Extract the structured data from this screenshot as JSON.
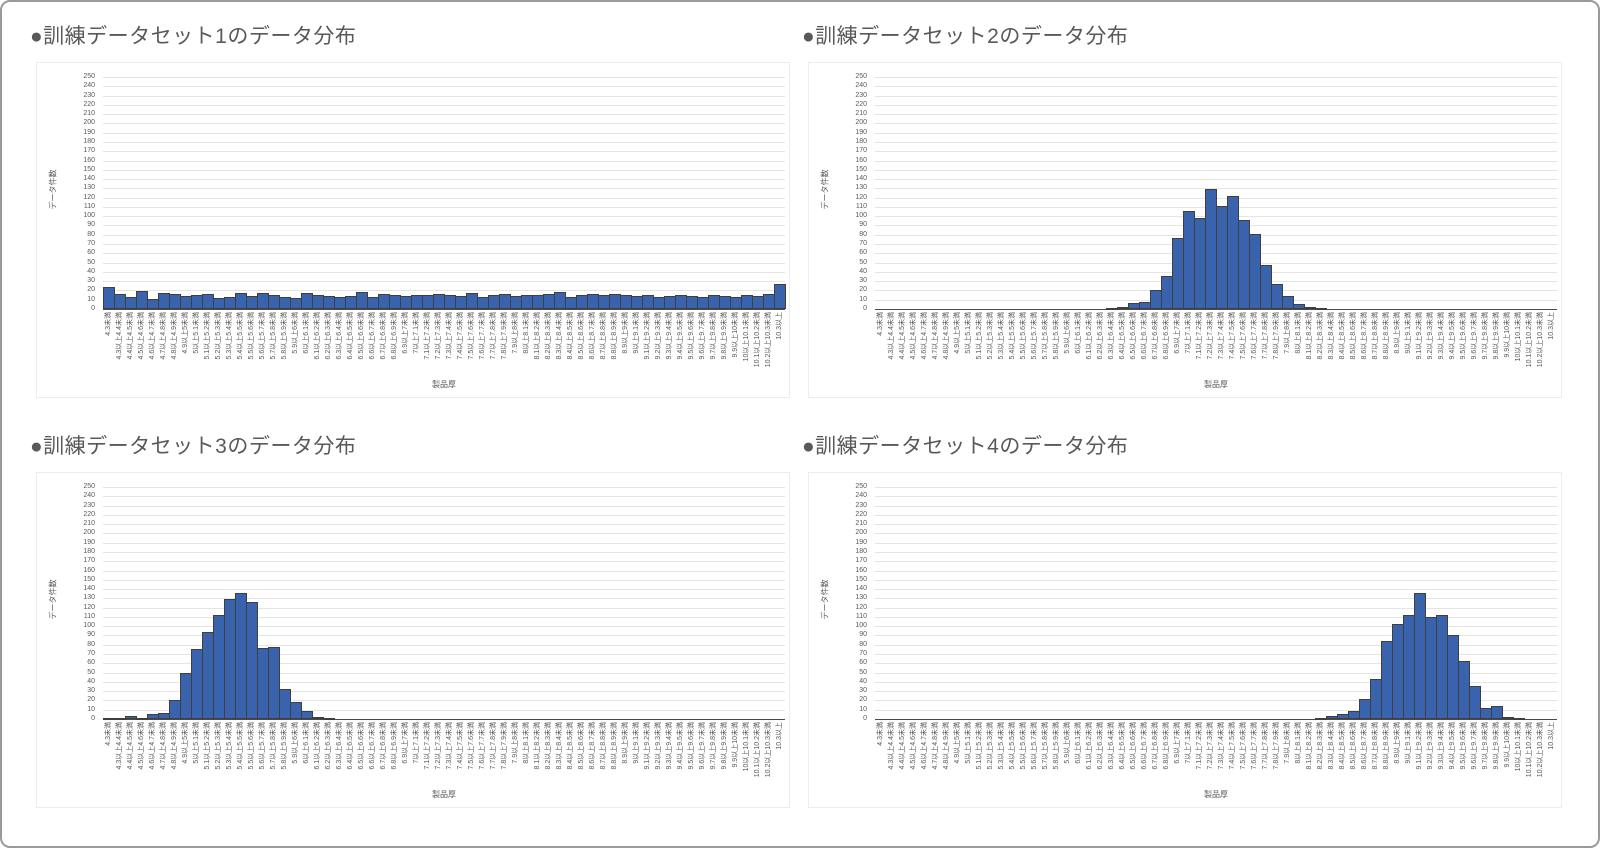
{
  "colors": {
    "bar_fill": "#3a63ad",
    "bar_border": "#3f3f3f",
    "gridline": "#e4e4e4",
    "axis_line": "#4a4a4a",
    "text_gray": "#595959",
    "frame_border": "#9a9a9a",
    "background": "#ffffff"
  },
  "chart_data": [
    {
      "type": "bar",
      "title": "●訓練データセット1のデータ分布",
      "xlabel": "製品厚",
      "ylabel": "データ件数",
      "ylim": [
        0,
        250
      ],
      "y_step": 10,
      "grid": true,
      "legend": "none",
      "categories": [
        "4.3未満",
        "4.3以上4.4未満",
        "4.4以上4.5未満",
        "4.5以上4.6未満",
        "4.6以上4.7未満",
        "4.7以上4.8未満",
        "4.8以上4.9未満",
        "4.9以上5未満",
        "5以上5.1未満",
        "5.1以上5.2未満",
        "5.2以上5.3未満",
        "5.3以上5.4未満",
        "5.4以上5.5未満",
        "5.5以上5.6未満",
        "5.6以上5.7未満",
        "5.7以上5.8未満",
        "5.8以上5.9未満",
        "5.9以上6未満",
        "6以上6.1未満",
        "6.1以上6.2未満",
        "6.2以上6.3未満",
        "6.3以上6.4未満",
        "6.4以上6.5未満",
        "6.5以上6.6未満",
        "6.6以上6.7未満",
        "6.7以上6.8未満",
        "6.8以上6.9未満",
        "6.9以上7未満",
        "7以上7.1未満",
        "7.1以上7.2未満",
        "7.2以上7.3未満",
        "7.3以上7.4未満",
        "7.4以上7.5未満",
        "7.5以上7.6未満",
        "7.6以上7.7未満",
        "7.7以上7.8未満",
        "7.8以上7.9未満",
        "7.9以上8未満",
        "8以上8.1未満",
        "8.1以上8.2未満",
        "8.2以上8.3未満",
        "8.3以上8.4未満",
        "8.4以上8.5未満",
        "8.5以上8.6未満",
        "8.6以上8.7未満",
        "8.7以上8.8未満",
        "8.8以上8.9未満",
        "8.9以上9未満",
        "9以上9.1未満",
        "9.1以上9.2未満",
        "9.2以上9.3未満",
        "9.3以上9.4未満",
        "9.4以上9.5未満",
        "9.5以上9.6未満",
        "9.6以上9.7未満",
        "9.7以上9.8未満",
        "9.8以上9.9未満",
        "9.9以上10未満",
        "10以上10.1未満",
        "10.1以上10.2未満",
        "10.2以上10.3未満",
        "10.3以上"
      ],
      "values": [
        24,
        16,
        13,
        19,
        11,
        17,
        16,
        14,
        15,
        16,
        12,
        13,
        17,
        14,
        17,
        15,
        13,
        12,
        17,
        15,
        14,
        13,
        14,
        18,
        13,
        16,
        15,
        14,
        15,
        15,
        16,
        15,
        14,
        17,
        13,
        15,
        16,
        14,
        15,
        15,
        16,
        18,
        13,
        15,
        16,
        15,
        16,
        15,
        14,
        15,
        13,
        14,
        15,
        14,
        13,
        15,
        14,
        13,
        15,
        14,
        16,
        27
      ]
    },
    {
      "type": "bar",
      "title": "●訓練データセット2のデータ分布",
      "xlabel": "製品厚",
      "ylabel": "データ件数",
      "ylim": [
        0,
        250
      ],
      "y_step": 10,
      "grid": true,
      "legend": "none",
      "categories": [
        "4.3未満",
        "4.3以上4.4未満",
        "4.4以上4.5未満",
        "4.5以上4.6未満",
        "4.6以上4.7未満",
        "4.7以上4.8未満",
        "4.8以上4.9未満",
        "4.9以上5未満",
        "5以上5.1未満",
        "5.1以上5.2未満",
        "5.2以上5.3未満",
        "5.3以上5.4未満",
        "5.4以上5.5未満",
        "5.5以上5.6未満",
        "5.6以上5.7未満",
        "5.7以上5.8未満",
        "5.8以上5.9未満",
        "5.9以上6未満",
        "6以上6.1未満",
        "6.1以上6.2未満",
        "6.2以上6.3未満",
        "6.3以上6.4未満",
        "6.4以上6.5未満",
        "6.5以上6.6未満",
        "6.6以上6.7未満",
        "6.7以上6.8未満",
        "6.8以上6.9未満",
        "6.9以上7未満",
        "7以上7.1未満",
        "7.1以上7.2未満",
        "7.2以上7.3未満",
        "7.3以上7.4未満",
        "7.4以上7.5未満",
        "7.5以上7.6未満",
        "7.6以上7.7未満",
        "7.7以上7.8未満",
        "7.8以上7.9未満",
        "7.9以上8未満",
        "8以上8.1未満",
        "8.1以上8.2未満",
        "8.2以上8.3未満",
        "8.3以上8.4未満",
        "8.4以上8.5未満",
        "8.5以上8.6未満",
        "8.6以上8.7未満",
        "8.7以上8.8未満",
        "8.8以上8.9未満",
        "8.9以上9未満",
        "9以上9.1未満",
        "9.1以上9.2未満",
        "9.2以上9.3未満",
        "9.3以上9.4未満",
        "9.4以上9.5未満",
        "9.5以上9.6未満",
        "9.6以上9.7未満",
        "9.7以上9.8未満",
        "9.8以上9.9未満",
        "9.9以上10未満",
        "10以上10.1未満",
        "10.1以上10.2未満",
        "10.2以上10.3未満",
        "10.3以上"
      ],
      "values": [
        0,
        0,
        0,
        0,
        0,
        0,
        0,
        0,
        0,
        0,
        0,
        0,
        0,
        0,
        0,
        0,
        0,
        0,
        0,
        0,
        0,
        1,
        2,
        6,
        8,
        20,
        36,
        77,
        106,
        98,
        129,
        111,
        122,
        96,
        81,
        47,
        27,
        14,
        5,
        2,
        1,
        0,
        0,
        0,
        0,
        0,
        0,
        0,
        0,
        0,
        0,
        0,
        0,
        0,
        0,
        0,
        0,
        0,
        0,
        0,
        0,
        0
      ]
    },
    {
      "type": "bar",
      "title": "●訓練データセット3のデータ分布",
      "xlabel": "製品厚",
      "ylabel": "データ件数",
      "ylim": [
        0,
        250
      ],
      "y_step": 10,
      "grid": true,
      "legend": "none",
      "categories": [
        "4.3未満",
        "4.3以上4.4未満",
        "4.4以上4.5未満",
        "4.5以上4.6未満",
        "4.6以上4.7未満",
        "4.7以上4.8未満",
        "4.8以上4.9未満",
        "4.9以上5未満",
        "5以上5.1未満",
        "5.1以上5.2未満",
        "5.2以上5.3未満",
        "5.3以上5.4未満",
        "5.4以上5.5未満",
        "5.5以上5.6未満",
        "5.6以上5.7未満",
        "5.7以上5.8未満",
        "5.8以上5.9未満",
        "5.9以上6未満",
        "6以上6.1未満",
        "6.1以上6.2未満",
        "6.2以上6.3未満",
        "6.3以上6.4未満",
        "6.4以上6.5未満",
        "6.5以上6.6未満",
        "6.6以上6.7未満",
        "6.7以上6.8未満",
        "6.8以上6.9未満",
        "6.9以上7未満",
        "7以上7.1未満",
        "7.1以上7.2未満",
        "7.2以上7.3未満",
        "7.3以上7.4未満",
        "7.4以上7.5未満",
        "7.5以上7.6未満",
        "7.6以上7.7未満",
        "7.7以上7.8未満",
        "7.8以上7.9未満",
        "7.9以上8未満",
        "8以上8.1未満",
        "8.1以上8.2未満",
        "8.2以上8.3未満",
        "8.3以上8.4未満",
        "8.4以上8.5未満",
        "8.5以上8.6未満",
        "8.6以上8.7未満",
        "8.7以上8.8未満",
        "8.8以上8.9未満",
        "8.9以上9未満",
        "9以上9.1未満",
        "9.1以上9.2未満",
        "9.2以上9.3未満",
        "9.3以上9.4未満",
        "9.4以上9.5未満",
        "9.5以上9.6未満",
        "9.6以上9.7未満",
        "9.7以上9.8未満",
        "9.8以上9.9未満",
        "9.9以上10未満",
        "10以上10.1未満",
        "10.1以上10.2未満",
        "10.2以上10.3未満",
        "10.3以上"
      ],
      "values": [
        1,
        1,
        3,
        1,
        5,
        7,
        20,
        50,
        75,
        94,
        112,
        129,
        136,
        126,
        76,
        78,
        32,
        18,
        9,
        2,
        1,
        0,
        0,
        0,
        0,
        0,
        0,
        0,
        0,
        0,
        0,
        0,
        0,
        0,
        0,
        0,
        0,
        0,
        0,
        0,
        0,
        0,
        0,
        0,
        0,
        0,
        0,
        0,
        0,
        0,
        0,
        0,
        0,
        0,
        0,
        0,
        0,
        0,
        0,
        0,
        0,
        0
      ]
    },
    {
      "type": "bar",
      "title": "●訓練データセット4のデータ分布",
      "xlabel": "製品厚",
      "ylabel": "データ件数",
      "ylim": [
        0,
        250
      ],
      "y_step": 10,
      "grid": true,
      "legend": "none",
      "categories": [
        "4.3未満",
        "4.3以上4.4未満",
        "4.4以上4.5未満",
        "4.5以上4.6未満",
        "4.6以上4.7未満",
        "4.7以上4.8未満",
        "4.8以上4.9未満",
        "4.9以上5未満",
        "5以上5.1未満",
        "5.1以上5.2未満",
        "5.2以上5.3未満",
        "5.3以上5.4未満",
        "5.4以上5.5未満",
        "5.5以上5.6未満",
        "5.6以上5.7未満",
        "5.7以上5.8未満",
        "5.8以上5.9未満",
        "5.9以上6未満",
        "6以上6.1未満",
        "6.1以上6.2未満",
        "6.2以上6.3未満",
        "6.3以上6.4未満",
        "6.4以上6.5未満",
        "6.5以上6.6未満",
        "6.6以上6.7未満",
        "6.7以上6.8未満",
        "6.8以上6.9未満",
        "6.9以上7未満",
        "7以上7.1未満",
        "7.1以上7.2未満",
        "7.2以上7.3未満",
        "7.3以上7.4未満",
        "7.4以上7.5未満",
        "7.5以上7.6未満",
        "7.6以上7.7未満",
        "7.7以上7.8未満",
        "7.8以上7.9未満",
        "7.9以上8未満",
        "8以上8.1未満",
        "8.1以上8.2未満",
        "8.2以上8.3未満",
        "8.3以上8.4未満",
        "8.4以上8.5未満",
        "8.5以上8.6未満",
        "8.6以上8.7未満",
        "8.7以上8.8未満",
        "8.8以上8.9未満",
        "8.9以上9未満",
        "9以上9.1未満",
        "9.1以上9.2未満",
        "9.2以上9.3未満",
        "9.3以上9.4未満",
        "9.4以上9.5未満",
        "9.5以上9.6未満",
        "9.6以上9.7未満",
        "9.7以上9.8未満",
        "9.8以上9.9未満",
        "9.9以上10未満",
        "10以上10.1未満",
        "10.1以上10.2未満",
        "10.2以上10.3未満",
        "10.3以上"
      ],
      "values": [
        0,
        0,
        0,
        0,
        0,
        0,
        0,
        0,
        0,
        0,
        0,
        0,
        0,
        0,
        0,
        0,
        0,
        0,
        0,
        0,
        0,
        0,
        0,
        0,
        0,
        0,
        0,
        0,
        0,
        0,
        0,
        0,
        0,
        0,
        0,
        0,
        0,
        0,
        0,
        0,
        1,
        3,
        5,
        9,
        22,
        43,
        84,
        102,
        112,
        136,
        110,
        112,
        91,
        62,
        36,
        12,
        14,
        2,
        1,
        0,
        0,
        0
      ]
    }
  ]
}
